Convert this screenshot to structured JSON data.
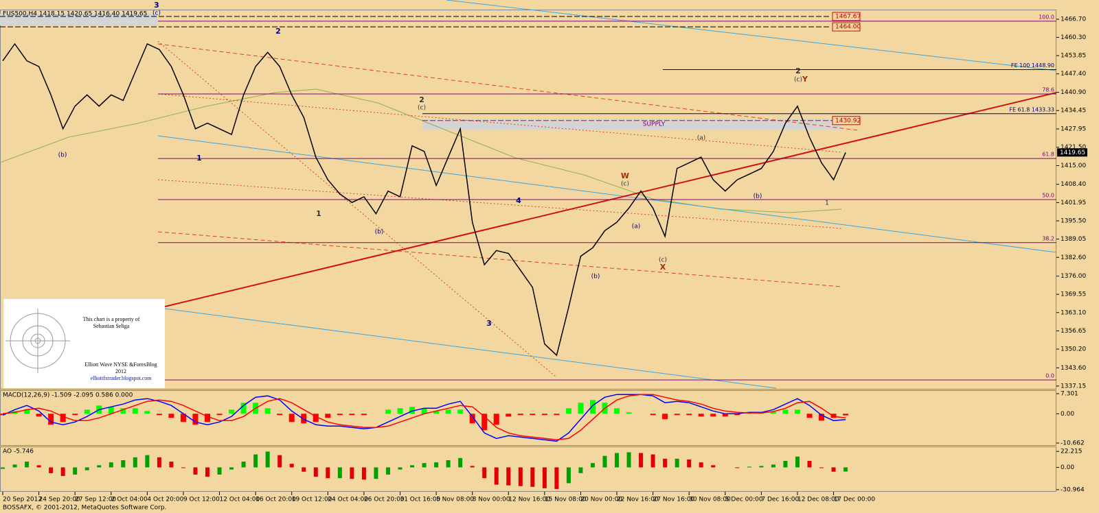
{
  "chart_data": [
    {
      "type": "line",
      "title": "FUS500,H4  1418.15 1420.65 1416.40 1419.65",
      "color": "#000000",
      "categories": [
        "20 Sep 2012",
        null,
        null,
        "24 Sep 20:00",
        null,
        null,
        "27 Sep 12:00",
        null,
        null,
        "2 Oct 04:00",
        null,
        null,
        "4 Oct 20:00",
        null,
        null,
        "9 Oct 12:00",
        null,
        null,
        "12 Oct 04:00",
        null,
        null,
        "16 Oct 20:00",
        null,
        null,
        "19 Oct 12:00",
        null,
        null,
        "24 Oct 04:00",
        null,
        null,
        "26 Oct 20:00",
        null,
        null,
        "31 Oct 16:00",
        null,
        null,
        "5 Nov 08:00",
        null,
        null,
        "8 Nov 00:00",
        null,
        null,
        "12 Nov 16:00",
        null,
        null,
        "15 Nov 08:00",
        null,
        null,
        "20 Nov 00:00",
        null,
        null,
        "22 Nov 16:00",
        null,
        null,
        "27 Nov 16:00",
        null,
        null,
        "30 Nov 08:00",
        null,
        null,
        "5 Dec 00:00",
        null,
        null,
        "7 Dec 16:00",
        null,
        null,
        "12 Dec 08:00",
        null,
        null,
        "17 Dec 00:00",
        null,
        null
      ],
      "values": [
        1452,
        1458,
        1452,
        1450,
        1440,
        1428,
        1436,
        1440,
        1436,
        1440,
        1438,
        1448,
        1458,
        1456,
        1450,
        1440,
        1428,
        1430,
        1428,
        1426,
        1440,
        1450,
        1455,
        1450,
        1440,
        1432,
        1418,
        1410,
        1405,
        1402,
        1404,
        1398,
        1406,
        1404,
        1422,
        1420,
        1408,
        1418,
        1428,
        1395,
        1380,
        1385,
        1384,
        1378,
        1372,
        1352,
        1348,
        1365,
        1383,
        1386,
        1392,
        1395,
        1400,
        1406,
        1400,
        1390,
        1414,
        1416,
        1418,
        1410,
        1406,
        1410,
        1412,
        1414,
        1420,
        1430,
        1436,
        1425,
        1416,
        1410,
        1419.65,
        null
      ],
      "ylim": [
        1336.4,
        1470.1
      ],
      "yticks": [
        {
          "value": 1466.7,
          "label": "1466.70"
        },
        {
          "value": 1460.3,
          "label": "1460.30"
        },
        1453.85,
        {
          "value": 1447.4,
          "label": "1447.40"
        },
        {
          "value": 1440.9,
          "label": "1440.90"
        },
        1434.45,
        1427.95,
        {
          "value": 1421.5,
          "label": "1421.50"
        },
        {
          "value": 1415,
          "label": "1415.00"
        },
        {
          "value": 1408.4,
          "label": "1408.40"
        },
        1401.95,
        {
          "value": 1395.5,
          "label": "1395.50"
        },
        1389.05,
        {
          "value": 1382.6,
          "label": "1382.60"
        },
        {
          "value": 1376,
          "label": "1376.00"
        },
        1369.55,
        {
          "value": 1363.1,
          "label": "1363.10"
        },
        1356.65,
        {
          "value": 1350.2,
          "label": "1350.20"
        },
        {
          "value": 1343.6,
          "label": "1343.60"
        },
        1337.15
      ],
      "last_price": 1419.65,
      "levels": [
        {
          "value": 1467.67,
          "label": "1467.67",
          "kind": "box",
          "color": "#000000"
        },
        {
          "value": 1464,
          "label": "1464.00",
          "kind": "box",
          "color": "#000000"
        },
        {
          "value": 1466,
          "label": "100.0",
          "kind": "fib",
          "color": "#800080"
        },
        {
          "value": 1448.9,
          "label": "FE 100 1448.90",
          "kind": "fe",
          "color": "#000080"
        },
        {
          "value": 1440.3,
          "label": "78.6",
          "kind": "fib",
          "color": "#800080"
        },
        {
          "value": 1433.33,
          "label": "FE 61.8 1433.33",
          "kind": "fe",
          "color": "#000080"
        },
        {
          "value": 1430.92,
          "label": "1430.92",
          "kind": "box",
          "color": "#e00000"
        },
        {
          "value": 1417.5,
          "label": "61.8",
          "kind": "fib",
          "color": "#800080"
        },
        {
          "value": 1403,
          "label": "50.0",
          "kind": "fib",
          "color": "#800080"
        },
        {
          "value": 1387.8,
          "label": "38.2",
          "kind": "fib",
          "color": "#800080"
        },
        {
          "value": 1339.3,
          "label": "0.0",
          "kind": "fib",
          "color": "#800080"
        }
      ],
      "annotations": [
        {
          "text": "3",
          "color": "#000080"
        },
        {
          "text": "(c)",
          "color": "#000080"
        },
        {
          "text": "2",
          "color": "#000080"
        },
        {
          "text": "1",
          "color": "#000080"
        },
        {
          "text": "(b)",
          "color": "#000080"
        },
        {
          "text": "2",
          "color": "#333333"
        },
        {
          "text": "(c)",
          "color": "#333333"
        },
        {
          "text": "4",
          "color": "#000080"
        },
        {
          "text": "3",
          "color": "#000080"
        },
        {
          "text": "W",
          "color": "#a03000"
        },
        {
          "text": "(c)",
          "color": "#333333"
        },
        {
          "text": "X",
          "color": "#a03000"
        },
        {
          "text": "(c)",
          "color": "#333333"
        },
        {
          "text": "2",
          "color": "#333333"
        },
        {
          "text": "(c)",
          "color": "#333333"
        },
        {
          "text": "Y",
          "color": "#a03000"
        },
        {
          "text": "(a)",
          "color": "#333333"
        },
        {
          "text": "SUPPLY",
          "color": "#800080"
        },
        {
          "text": "1",
          "color": "#333333"
        },
        {
          "text": "(b)",
          "color": "#000080"
        },
        {
          "text": "(a)",
          "color": "#000080"
        },
        {
          "text": "(b)",
          "color": "#000080"
        },
        {
          "text": "(b)",
          "color": "#000080"
        },
        {
          "text": "1",
          "color": "#333333"
        }
      ]
    },
    {
      "type": "macd",
      "title": "MACD(12,26,9) -1.509 -2.095 0.586 0.000",
      "ylim": [
        -11.66,
        8.3
      ],
      "yticks": [
        7.301,
        {
          "value": 0,
          "label": "0.00"
        },
        -10.662
      ],
      "series": [
        {
          "style": "histogram",
          "color": "#00ff00",
          "negative_color": "#ff0000",
          "values": [
            -0.5,
            1,
            1.5,
            -1,
            -4,
            -3,
            -0.5,
            1.5,
            3,
            2.5,
            2,
            2,
            1,
            -0.5,
            -1.5,
            -3,
            -4,
            -3,
            -0.5,
            1.5,
            4,
            4,
            2,
            -0.5,
            -3,
            -3.5,
            -3,
            -1.5,
            -0.5,
            -0.5,
            -0.5,
            0,
            1.5,
            2,
            2.5,
            2,
            1,
            1.5,
            1.5,
            -3.5,
            -6,
            -4,
            -1,
            -0.5,
            -0.5,
            -0.5,
            -0.5,
            2,
            4,
            5,
            4,
            2,
            0.5,
            0,
            -0.5,
            -2,
            -0.5,
            -0.5,
            -1,
            -1,
            -1,
            -0.5,
            0.2,
            0.2,
            0.7,
            1.5,
            1.5,
            -1.5,
            -2.5,
            -1.5,
            -0.6,
            null
          ]
        },
        {
          "style": "line",
          "color": "#0000ff",
          "values": [
            -0.5,
            1.5,
            3,
            1,
            -3,
            -4,
            -3,
            -1,
            1.5,
            2.5,
            3.5,
            5,
            5.5,
            4.5,
            3,
            0,
            -3,
            -4,
            -3,
            -1,
            3,
            6,
            6.5,
            5,
            1,
            -2,
            -4,
            -4.5,
            -4.5,
            -5,
            -5.5,
            -5,
            -3,
            -1,
            1,
            2,
            2,
            3.5,
            4.5,
            -1,
            -7,
            -9,
            -8,
            -8.5,
            -9,
            -9.5,
            -10,
            -7,
            -2,
            3,
            6,
            7,
            7,
            7,
            6.5,
            4,
            4.5,
            4,
            2.5,
            1,
            0,
            0,
            0.5,
            0.5,
            1.5,
            3.5,
            5.5,
            3,
            -0.5,
            -2.5,
            -2.1,
            null
          ]
        },
        {
          "style": "line",
          "color": "#ff0000",
          "values": [
            0,
            0.5,
            1.5,
            2,
            1,
            -1,
            -2.5,
            -2.5,
            -1.5,
            0,
            1.5,
            3,
            4.5,
            5,
            4.5,
            3,
            1,
            -1,
            -2.5,
            -2.5,
            -1,
            2,
            4.5,
            5.5,
            4,
            1.5,
            -1,
            -3,
            -4,
            -4.5,
            -5,
            -5,
            -4.5,
            -3,
            -1.5,
            0,
            1,
            2,
            3,
            2.5,
            -1,
            -5,
            -7,
            -8,
            -8.5,
            -9,
            -9.5,
            -9,
            -6,
            -2,
            2,
            5,
            6.5,
            7,
            7,
            6,
            5,
            4.5,
            3.5,
            2,
            1,
            0.5,
            0.3,
            0.3,
            0.8,
            2,
            4,
            4.5,
            2,
            -1,
            -1.5,
            null
          ]
        }
      ]
    },
    {
      "type": "histogram",
      "title": "AO -5.746",
      "rising_color": "#00a000",
      "falling_color": "#e00000",
      "ylim": [
        -32.9,
        28.1
      ],
      "yticks": [
        22.215,
        {
          "value": 0,
          "label": "0.00"
        },
        -30.964
      ],
      "values": [
        -2,
        4,
        8,
        3,
        -8,
        -12,
        -10,
        -4,
        3,
        7,
        10,
        14,
        17,
        14,
        8,
        -1,
        -10,
        -13,
        -10,
        -3,
        8,
        18,
        22,
        17,
        5,
        -6,
        -13,
        -15,
        -15,
        -16,
        -17,
        -16,
        -10,
        -3,
        3,
        6,
        7,
        10,
        13,
        2,
        -15,
        -24,
        -25,
        -26,
        -27,
        -29,
        -30,
        -22,
        -8,
        6,
        16,
        20,
        21,
        20,
        18,
        12,
        12,
        11,
        7,
        3,
        0,
        -1,
        1,
        2,
        4,
        9,
        15,
        9,
        -1,
        -6,
        -5.746,
        null
      ]
    }
  ],
  "watermark": {
    "line1": "This chart is a property of",
    "line2": "Sebastian Seliga",
    "line3": "Elliott Wave NYSE &ForexBlog",
    "line4": "2012",
    "line5": "elliottfxtrader.blogspot.com"
  },
  "footer": "BOSSAFX, © 2001-2012, MetaQuotes Software Corp."
}
